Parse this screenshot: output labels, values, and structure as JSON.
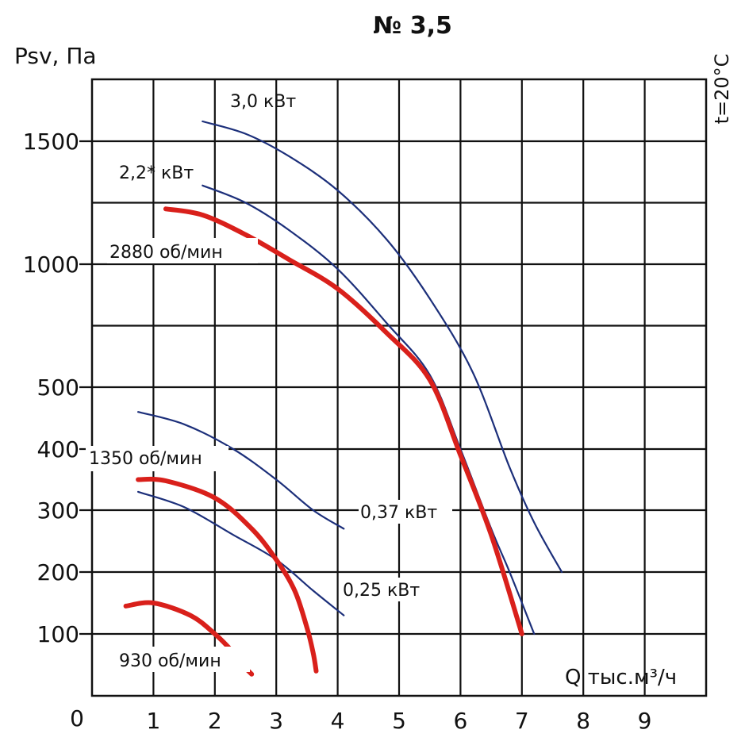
{
  "chart_data": {
    "type": "line",
    "title": "№ 3,5",
    "ylabel": "Psv, Па",
    "xlabel": "Q тыс.м³/ч",
    "temperature_note": "t=20°C",
    "origin_label": "0",
    "xlim": [
      0,
      10
    ],
    "x_ticks": [
      "1",
      "2",
      "3",
      "4",
      "5",
      "6",
      "7",
      "8",
      "9"
    ],
    "y_tick_labels": [
      {
        "value": 1500,
        "label": "1500"
      },
      {
        "value": 1000,
        "label": "1000"
      },
      {
        "value": 500,
        "label": "500"
      },
      {
        "value": 400,
        "label": "400"
      },
      {
        "value": 300,
        "label": "300"
      },
      {
        "value": 200,
        "label": "200"
      },
      {
        "value": 100,
        "label": "100"
      }
    ],
    "grid": true,
    "series": [
      {
        "name": "2880 об/мин",
        "color": "#d9201b",
        "kind": "speed",
        "x": [
          1.2,
          1.8,
          2.5,
          3.2,
          4.0,
          4.8,
          5.5,
          6.0,
          6.5,
          7.0
        ],
        "y": [
          1225,
          1200,
          1120,
          1020,
          900,
          720,
          530,
          390,
          260,
          100
        ]
      },
      {
        "name": "1350 об/мин",
        "color": "#d9201b",
        "kind": "speed",
        "x": [
          0.75,
          1.2,
          2.0,
          2.6,
          3.0,
          3.3,
          3.5,
          3.6,
          3.65
        ],
        "y": [
          350,
          348,
          320,
          270,
          220,
          170,
          110,
          70,
          40
        ]
      },
      {
        "name": "930 об/мин",
        "color": "#d9201b",
        "kind": "speed",
        "x": [
          0.55,
          1.0,
          1.6,
          2.0,
          2.3,
          2.45,
          2.6
        ],
        "y": [
          145,
          150,
          130,
          100,
          70,
          50,
          35
        ]
      },
      {
        "name": "3,0 кВт",
        "color": "#1c2f7a",
        "kind": "power",
        "x": [
          1.8,
          2.5,
          3.2,
          4.0,
          4.8,
          5.5,
          6.2,
          6.8,
          7.2,
          7.65
        ],
        "y": [
          1580,
          1530,
          1440,
          1300,
          1100,
          860,
          560,
          370,
          280,
          200
        ]
      },
      {
        "name": "2,2* кВт",
        "color": "#1c2f7a",
        "kind": "power",
        "x": [
          1.8,
          2.5,
          3.2,
          4.0,
          4.8,
          5.5,
          6.0,
          6.5,
          6.8,
          7.2
        ],
        "y": [
          1320,
          1250,
          1140,
          980,
          760,
          550,
          400,
          270,
          200,
          100
        ]
      },
      {
        "name": "0,37 кВт",
        "color": "#1c2f7a",
        "kind": "power",
        "x": [
          0.75,
          1.5,
          2.3,
          3.0,
          3.6,
          4.1
        ],
        "y": [
          460,
          440,
          400,
          350,
          300,
          270
        ]
      },
      {
        "name": "0,25 кВт",
        "color": "#1c2f7a",
        "kind": "power",
        "x": [
          0.75,
          1.5,
          2.3,
          3.0,
          3.6,
          4.1
        ],
        "y": [
          330,
          305,
          260,
          220,
          170,
          130
        ]
      }
    ]
  }
}
